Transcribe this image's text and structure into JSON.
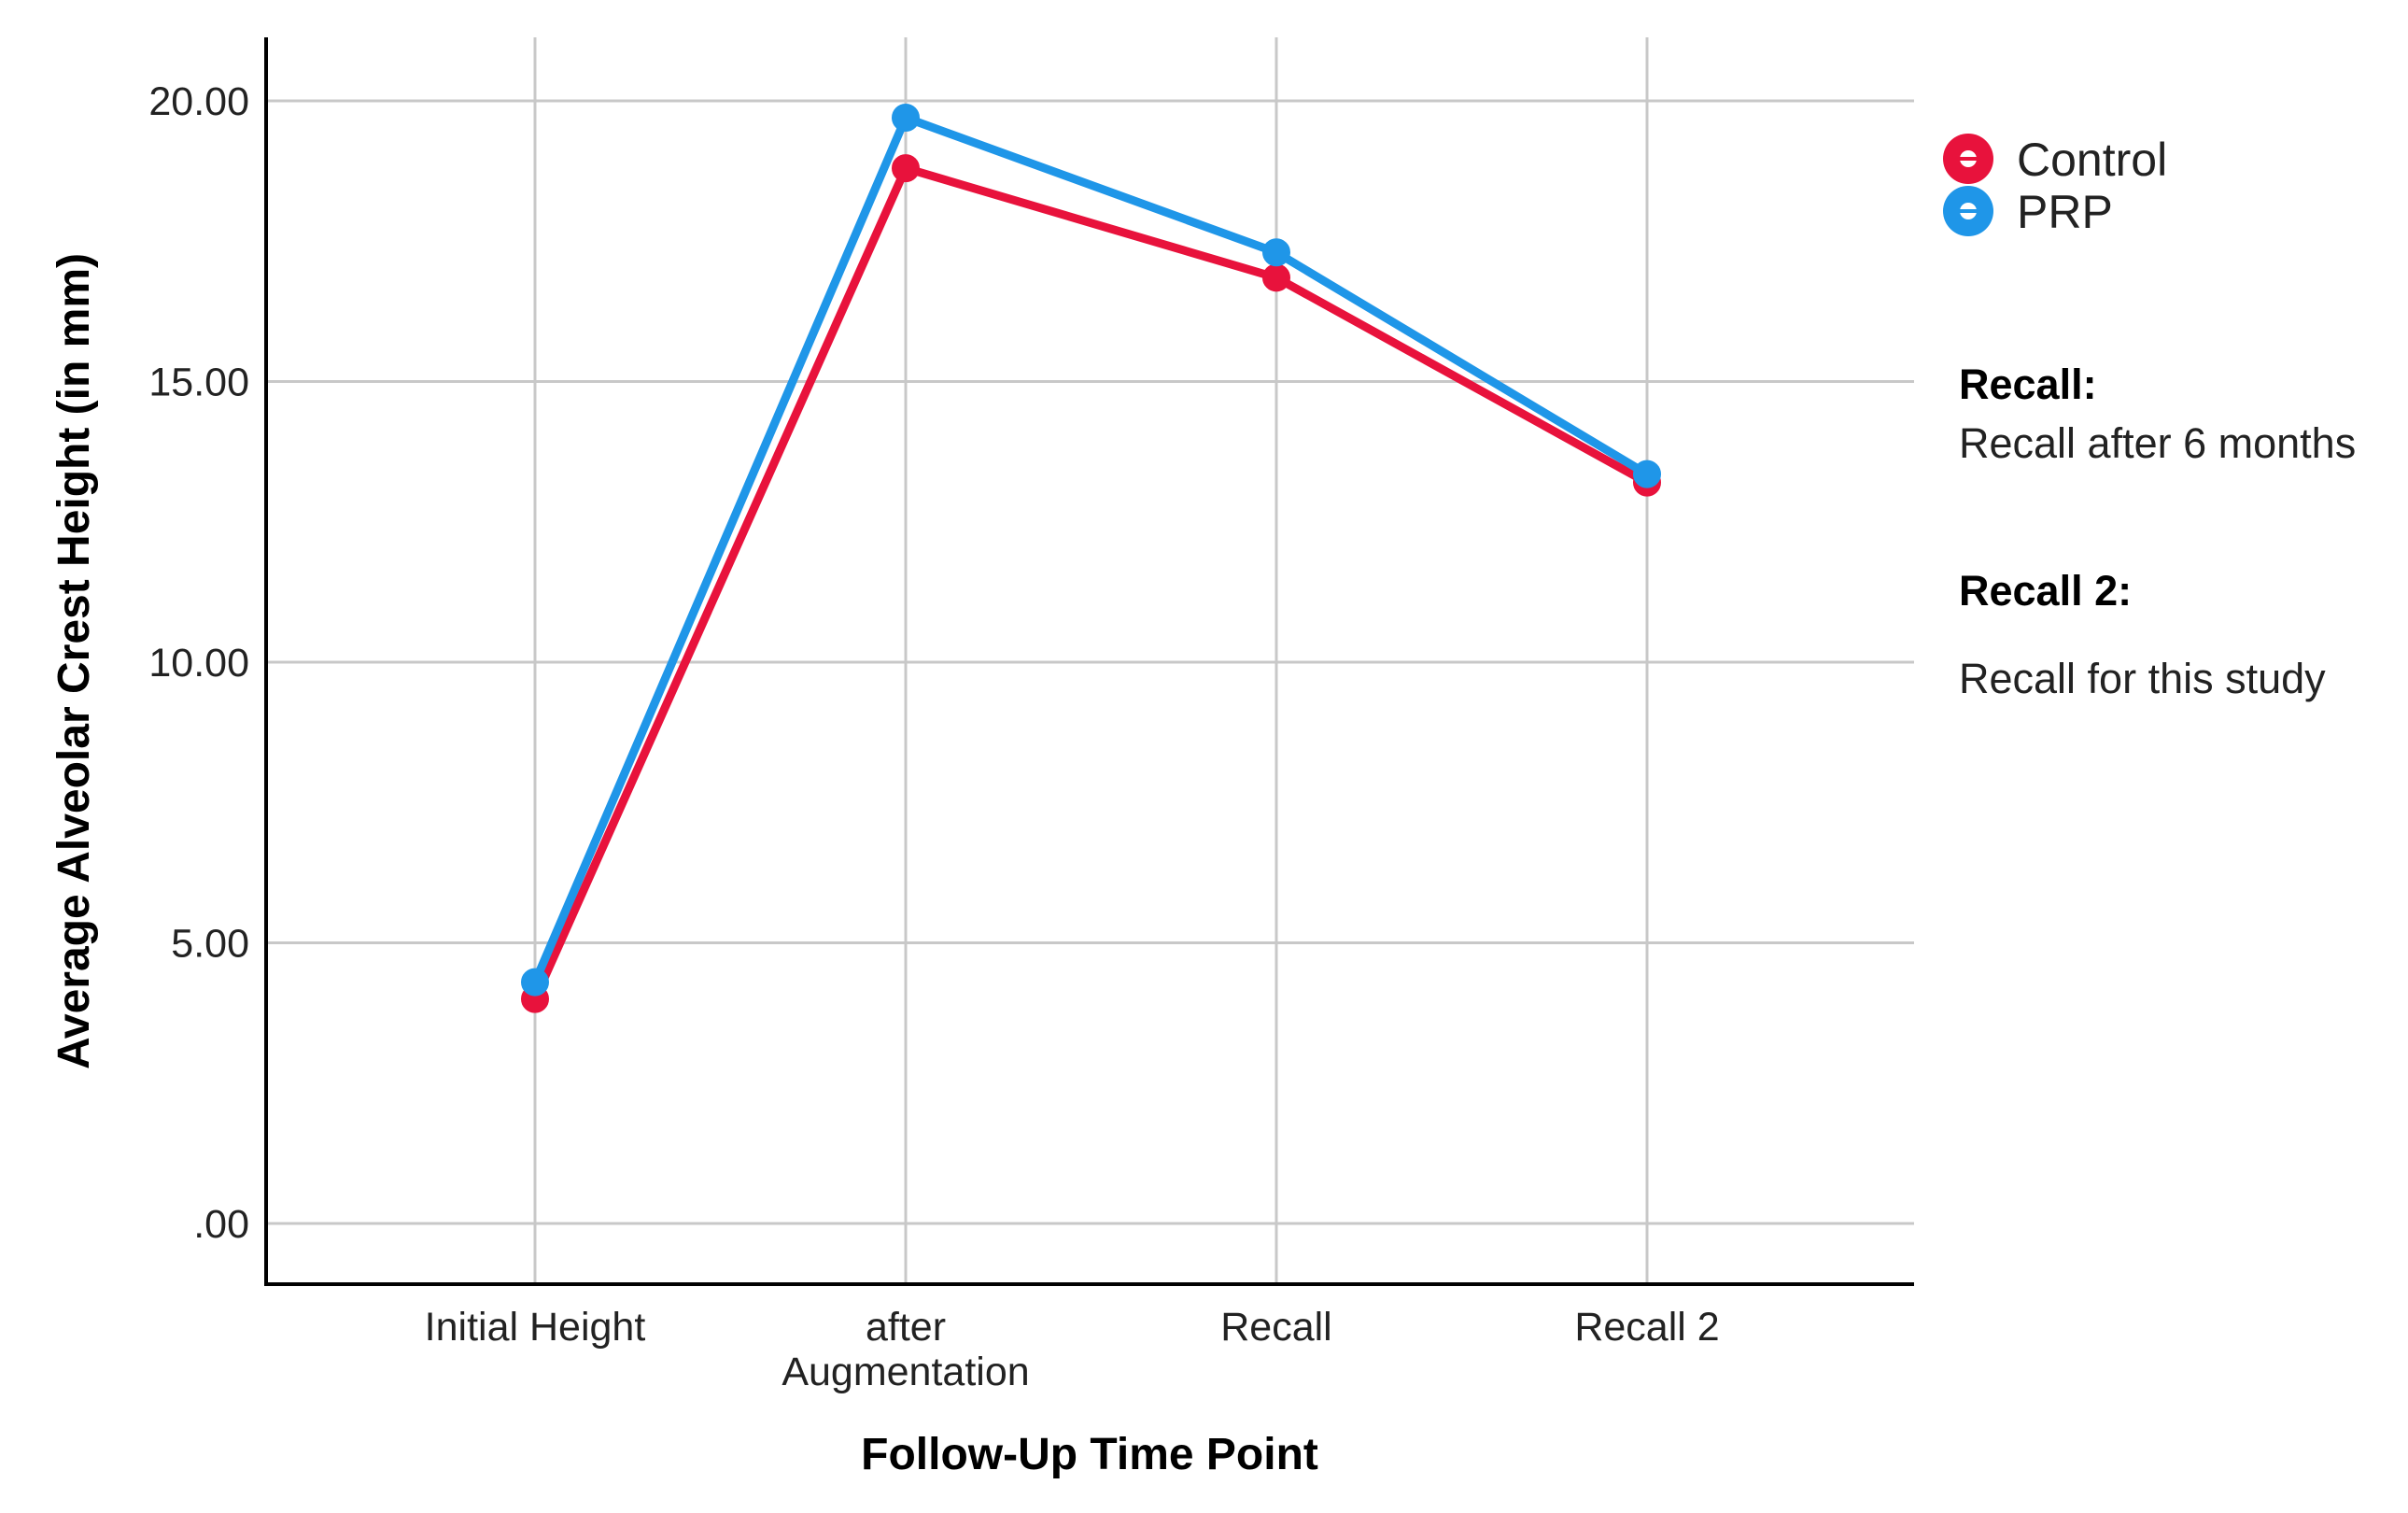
{
  "chart_data": {
    "type": "line",
    "title": "",
    "xlabel": "Follow-Up Time Point",
    "ylabel": "Average Alveolar Crest Height (in mm)",
    "categories": [
      "Initial Height",
      "after Augmentation",
      "Recall",
      "Recall 2"
    ],
    "series": [
      {
        "name": "Control",
        "color": "#e8123c",
        "values": [
          4.0,
          18.8,
          16.85,
          13.2
        ]
      },
      {
        "name": "PRP",
        "color": "#1f96e8",
        "values": [
          4.3,
          19.7,
          17.3,
          13.35
        ]
      }
    ],
    "ylim": [
      -1.0,
      21.0
    ],
    "yticks": [
      ".00",
      "5.00",
      "10.00",
      "15.00",
      "20.00"
    ],
    "grid": true,
    "legend": {
      "position": "top-right",
      "entries": [
        "Control",
        "PRP"
      ]
    },
    "notes": [
      {
        "heading": "Recall:",
        "text": "Recall after 6 months"
      },
      {
        "heading": "Recall 2:",
        "text": "Recall for this study"
      }
    ]
  }
}
